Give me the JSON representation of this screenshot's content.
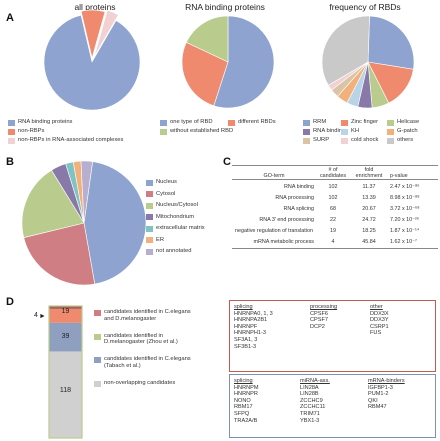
{
  "panels": {
    "A": "A",
    "B": "B",
    "C": "C",
    "D": "D"
  },
  "colors": {
    "blue": "#8ea3cf",
    "salmon": "#ef8a6f",
    "pink_light": "#f2d1d3",
    "gray": "#c9c9c9",
    "green": "#b9cc8d",
    "tan": "#d9c5a6",
    "lightblue": "#b9d4e6",
    "purple": "#8879a9",
    "orange": "#f2b07a",
    "olive": "#d7d29a",
    "lavender": "#b7aed0",
    "steel": "#8f9fbf",
    "teal": "#7fc3c3",
    "rose": "#cf7f83",
    "darkred": "#a6615f",
    "pale": "#f4efe0"
  },
  "panelA": {
    "titles": [
      "all proteins",
      "RNA binding proteins",
      "frequency of RBDs"
    ],
    "legend1": [
      "RNA binding proteins",
      "non-RBPs",
      "non-RBPs in RNA-associated complexes"
    ],
    "legend2": [
      "one type of RBD",
      "different RBDs",
      "without established RBD"
    ],
    "legend3": [
      [
        "RRM",
        "Zinc finger",
        "Helicase"
      ],
      [
        "RNA binding",
        "KH",
        "G-patch"
      ],
      [
        "SURP",
        "cold shock",
        "others"
      ]
    ]
  },
  "panelB": {
    "legend": [
      "Nucleus",
      "Cytosol",
      "Nucleus/Cytosol",
      "Mitochondrium",
      "extracellular matrix",
      "ER",
      "not annotated"
    ]
  },
  "panelC": {
    "headers": [
      "GO-term",
      "# of candidates",
      "fold enrichment",
      "p-value"
    ],
    "rows": [
      [
        "RNA binding",
        "102",
        "11.37",
        "2.47 x 10⁻⁸⁶"
      ],
      [
        "RNA processing",
        "102",
        "13.39",
        "8.98 x 10⁻⁸⁸"
      ],
      [
        "RNA splicing",
        "68",
        "20.67",
        "3.72 x 10⁻⁶⁸"
      ],
      [
        "RNA 3' end processing",
        "22",
        "24.72",
        "7.20 x 10⁻²⁶"
      ],
      [
        "negative regulation of translation",
        "19",
        "18.25",
        "1.87 x 10⁻¹⁴"
      ],
      [
        "mRNA metabolic process",
        "4",
        "45.84",
        "1.62 x 10⁻⁷"
      ]
    ]
  },
  "panelD": {
    "bar_values": {
      "top": "19",
      "mid": "39",
      "bottom": "118"
    },
    "arrow_value": "4",
    "legend": [
      "candidates identified in C.elegans and D.melanogaster",
      "candidates identified in D.melanogaster (Zhou et al.)",
      "candidates identified in C.elegans (Tabach et al.)",
      "non-overlapping candidates"
    ],
    "box1": {
      "cols": [
        {
          "head": "splicing",
          "items": [
            "HNRNPA0, 1, 3",
            "HNRNPA2B1",
            "HNRNPF",
            "HNRNPH1-3",
            "SF3A1, 3",
            "SF3B1-3"
          ]
        },
        {
          "head": "processing",
          "items": [
            "CPSF6",
            "CPSF7",
            "DCP2"
          ]
        },
        {
          "head": "other",
          "items": [
            "DDX3X",
            "DDX3Y",
            "CSRP1",
            "FUS"
          ]
        }
      ]
    },
    "box2": {
      "cols": [
        {
          "head": "splicing",
          "items": [
            "HNRNPM",
            "HNRNPR",
            "NONO",
            "RBM17",
            "SFPQ",
            "TRA2A/B"
          ]
        },
        {
          "head": "miRNA-ass.",
          "items": [
            "LIN28A",
            "LIN28B",
            "ZCCHC9",
            "ZCCHC11",
            "TRIM71",
            "YBX1-3"
          ]
        },
        {
          "head": "mRNA-binders",
          "items": [
            "IGFBP1-3",
            "PUM1-2",
            "QKI",
            "RBM47"
          ]
        }
      ]
    }
  }
}
